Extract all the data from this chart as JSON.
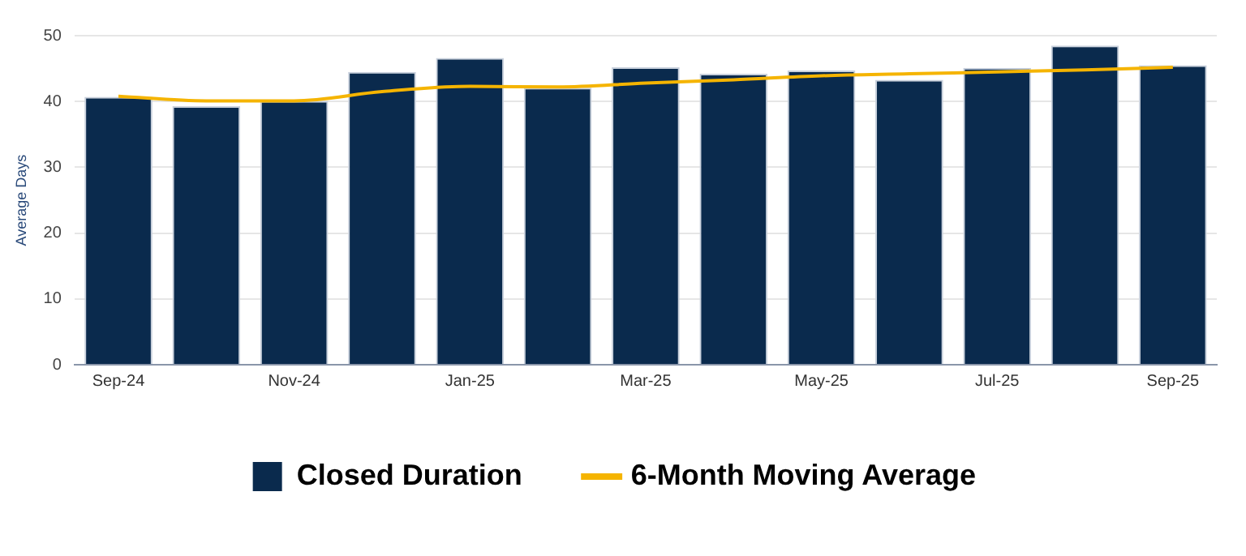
{
  "chart_data": {
    "type": "bar",
    "ylabel": "Average Days",
    "categories": [
      "Sep-24",
      null,
      "Nov-24",
      null,
      "Jan-25",
      null,
      "Mar-25",
      null,
      "May-25",
      null,
      "Jul-25",
      null,
      "Sep-25"
    ],
    "series": [
      {
        "name": "Closed Duration",
        "color": "#0a2a4d",
        "values": [
          40.7,
          39.3,
          40.1,
          44.5,
          46.6,
          42.1,
          45.2,
          44.2,
          44.7,
          43.3,
          45.1,
          48.5,
          45.5
        ]
      },
      {
        "name": "6-Month Moving Average",
        "type": "line",
        "color": "#f5b400",
        "values": [
          40.8,
          40.1,
          40.1,
          41.5,
          42.3,
          42.2,
          42.8,
          43.3,
          43.9,
          44.2,
          44.5,
          44.8,
          45.2
        ]
      }
    ],
    "ylim": [
      0,
      50
    ],
    "yticks": [
      0,
      10,
      20,
      30,
      40,
      50
    ],
    "grid": "y",
    "legend": "bottom",
    "marker": "none"
  }
}
